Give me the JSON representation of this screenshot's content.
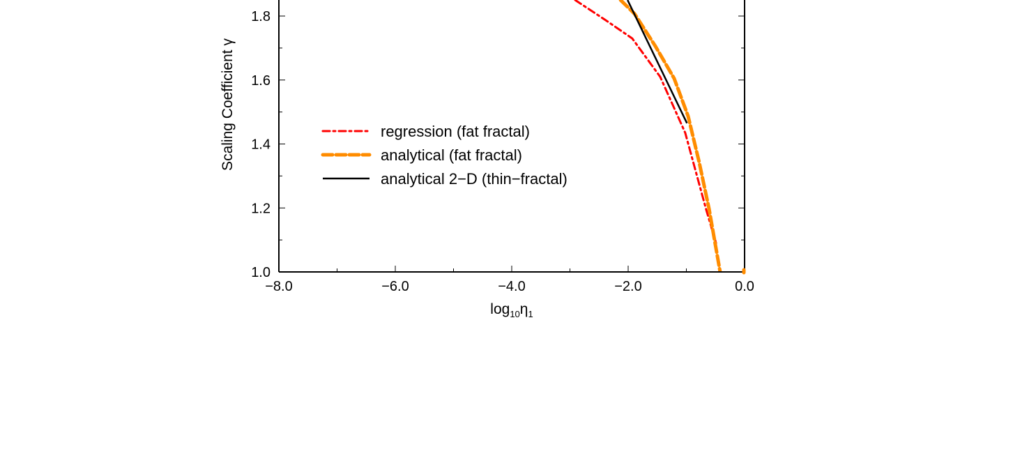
{
  "chart_data": {
    "type": "line",
    "title": "",
    "xlabel": "log10η1",
    "xlabel_parts": {
      "base": "log",
      "sub1": "10",
      "sym": "η",
      "sub2": "1"
    },
    "ylabel": "Scaling Coefficient γ",
    "xlim": [
      -8.0,
      0.0
    ],
    "ylim": [
      1.0,
      1.85
    ],
    "x_ticks": [
      "−8.0",
      "−6.0",
      "−4.0",
      "−2.0",
      "0.0"
    ],
    "x_tick_values": [
      -8,
      -6,
      -4,
      -2,
      0
    ],
    "y_ticks": [
      "1.0",
      "1.2",
      "1.4",
      "1.6",
      "1.8"
    ],
    "y_tick_values": [
      1.0,
      1.2,
      1.4,
      1.6,
      1.8
    ],
    "grid": false,
    "legend_position": "center-left",
    "series": [
      {
        "name": "regression (fat fractal)",
        "color": "#ff0000",
        "style": "dash-dot",
        "x": [
          -2.91,
          -2.37,
          -1.93,
          -1.45,
          -1.02,
          -0.66,
          -0.49
        ],
        "y": [
          1.85,
          1.785,
          1.73,
          1.61,
          1.435,
          1.195,
          1.09
        ]
      },
      {
        "name": "analytical (fat fractal)",
        "color": "#ff8c00",
        "style": "dashed",
        "x": [
          -2.13,
          -1.89,
          -1.53,
          -1.21,
          -0.97,
          -0.78,
          -0.61,
          -0.42
        ],
        "y": [
          1.85,
          1.807,
          1.705,
          1.605,
          1.487,
          1.343,
          1.197,
          1.0
        ],
        "extra_point": [
          0.0,
          1.0
        ]
      },
      {
        "name": "analytical 2−D (thin−fractal)",
        "color": "#000000",
        "style": "solid",
        "x": [
          -2.01,
          -0.99
        ],
        "y": [
          1.85,
          1.465
        ]
      }
    ]
  }
}
